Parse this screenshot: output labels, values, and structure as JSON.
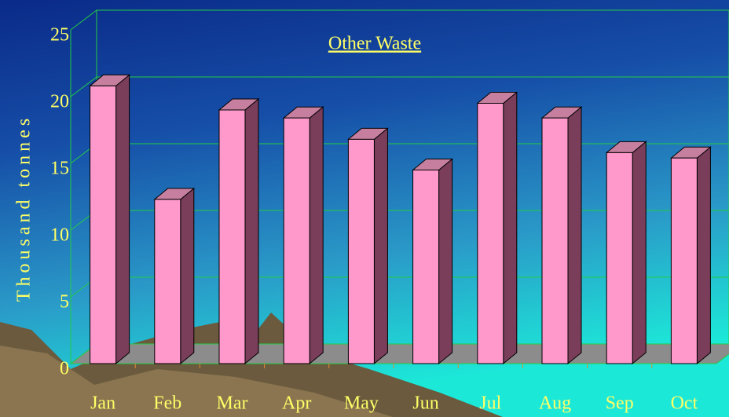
{
  "chart_data": {
    "type": "bar3d",
    "title": "Other Waste",
    "ylabel": "Thousand tonnes",
    "categories": [
      "Jan",
      "Feb",
      "Mar",
      "Apr",
      "May",
      "Jun",
      "Jul",
      "Aug",
      "Sep",
      "Oct"
    ],
    "values": [
      20.8,
      12.3,
      19.0,
      18.4,
      16.8,
      14.5,
      19.5,
      18.4,
      15.8,
      15.4
    ],
    "color": "#ff99cc",
    "ylim": [
      0,
      25
    ],
    "yticks": [
      0,
      5,
      10,
      15,
      20,
      25
    ],
    "grid": true
  }
}
